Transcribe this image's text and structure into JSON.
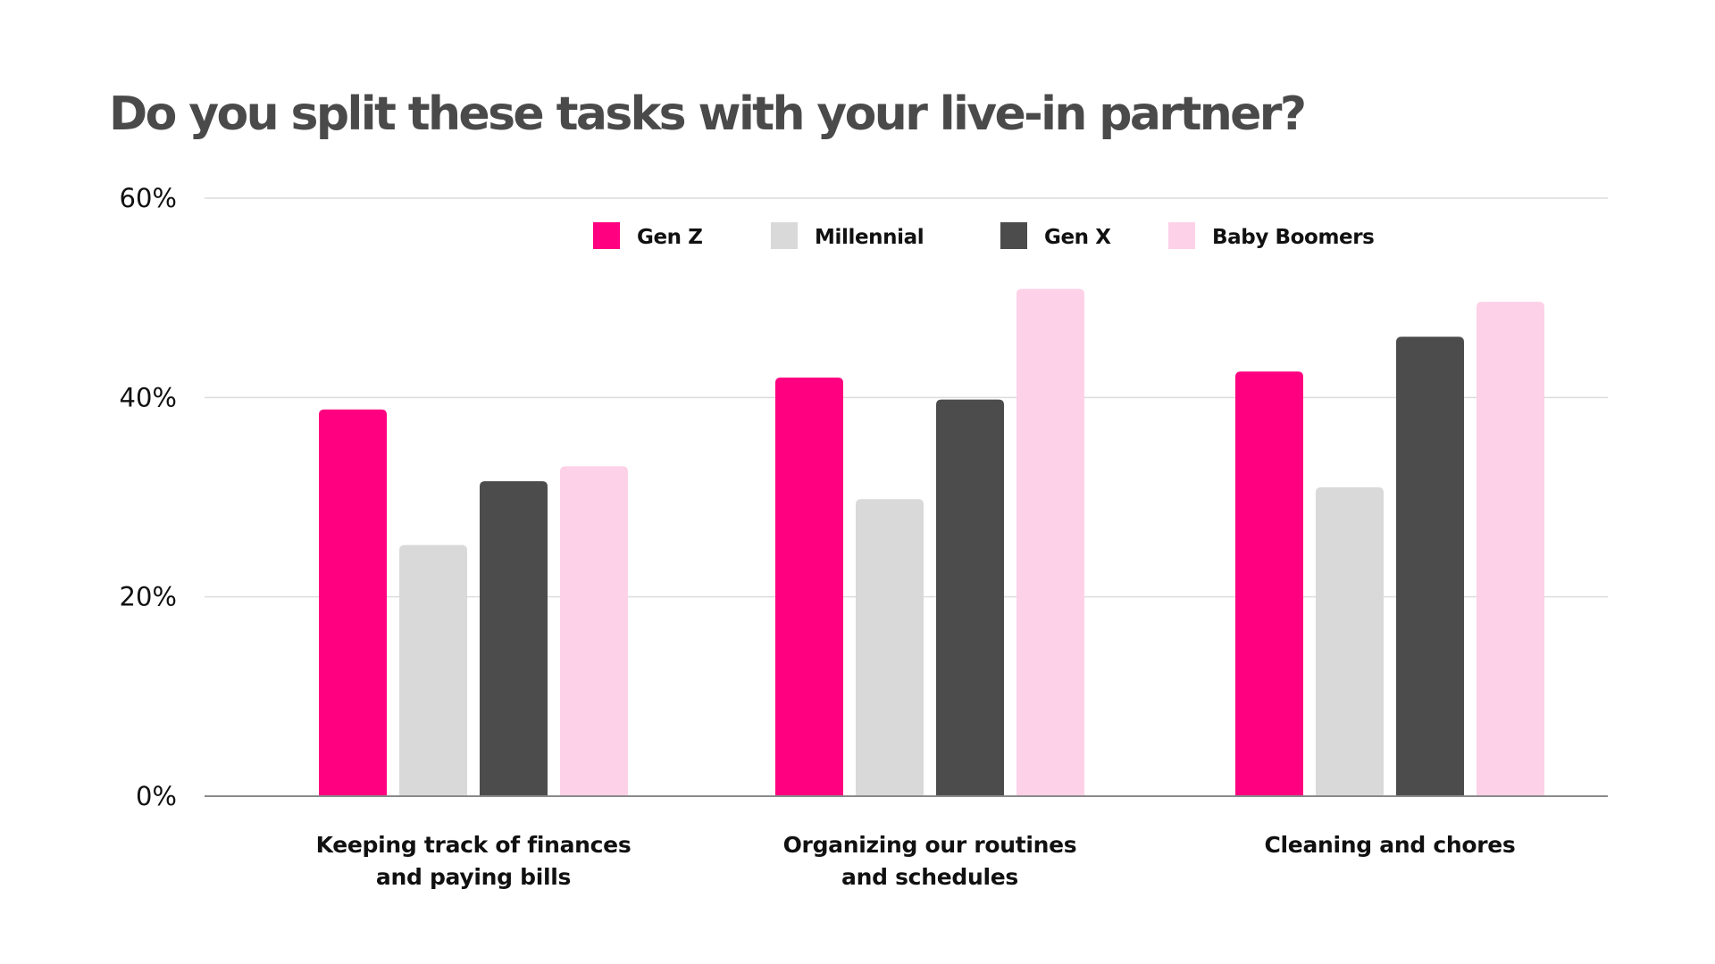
{
  "chart_data": {
    "type": "bar",
    "title": "Do you split these tasks with your live-in partner?",
    "xlabel": "",
    "ylabel": "",
    "ylim": [
      0,
      60
    ],
    "yticks": [
      0,
      20,
      40,
      60
    ],
    "ytick_labels": [
      "0%",
      "20%",
      "40%",
      "60%"
    ],
    "grid": true,
    "legend_position": "top-center",
    "categories": [
      [
        "Keeping track of finances",
        "and paying bills"
      ],
      [
        "Organizing our routines",
        "and schedules"
      ],
      [
        "Cleaning and chores"
      ]
    ],
    "series": [
      {
        "name": "Gen Z",
        "color": "#ff0080",
        "values": [
          38.8,
          42.0,
          42.6
        ]
      },
      {
        "name": "Millennial",
        "color": "#d9d9d9",
        "values": [
          25.2,
          29.8,
          31.0
        ]
      },
      {
        "name": "Gen X",
        "color": "#4c4c4c",
        "values": [
          31.6,
          39.8,
          46.1
        ]
      },
      {
        "name": "Baby Boomers",
        "color": "#fdd1e7",
        "values": [
          33.1,
          50.9,
          49.6
        ]
      }
    ]
  }
}
